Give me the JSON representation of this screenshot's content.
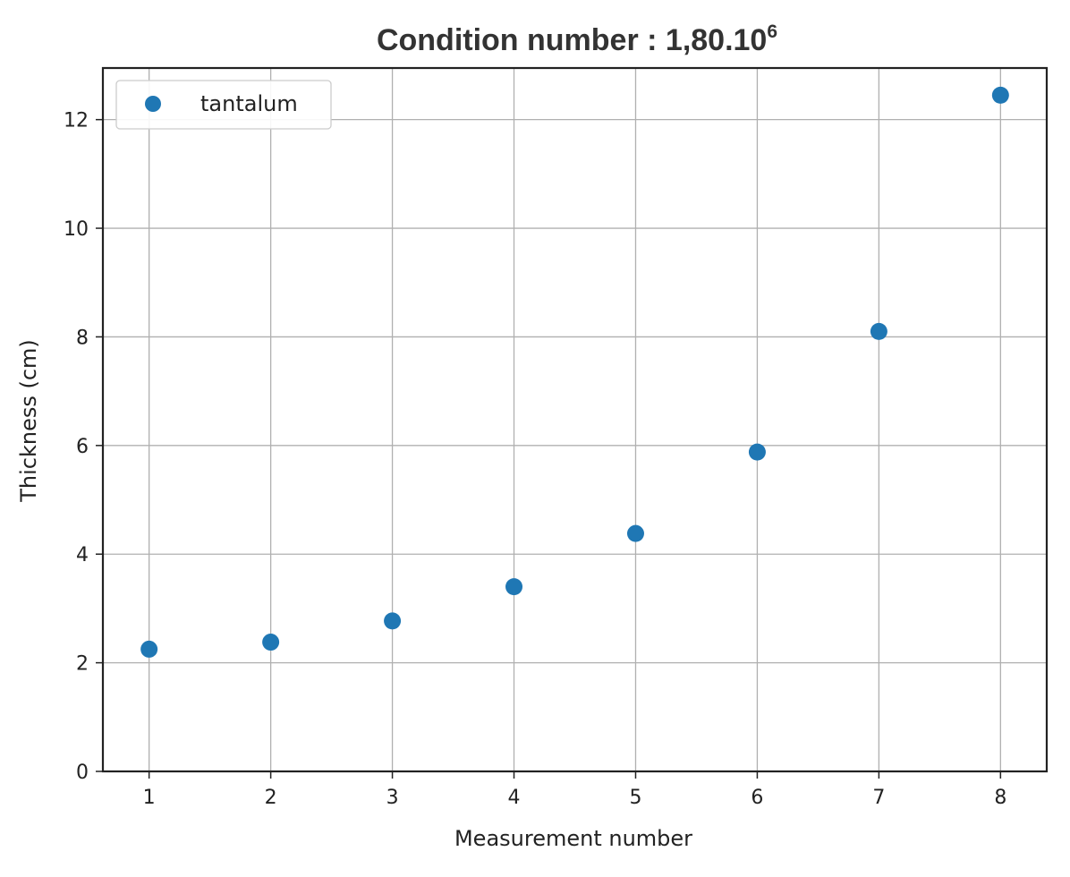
{
  "chart_data": {
    "type": "scatter",
    "title": "Condition number : 1,80.10",
    "title_superscript": "6",
    "xlabel": "Measurement number",
    "ylabel": "Thickness (cm)",
    "xlim": [
      0.62,
      8.38
    ],
    "ylim": [
      0,
      12.95
    ],
    "xticks": [
      1,
      2,
      3,
      4,
      5,
      6,
      7,
      8
    ],
    "yticks": [
      0,
      2,
      4,
      6,
      8,
      10,
      12
    ],
    "grid": true,
    "legend_position": "top-left",
    "series": [
      {
        "name": "tantalum",
        "color": "#1f77b4",
        "x": [
          1,
          2,
          3,
          4,
          5,
          6,
          7,
          8
        ],
        "y": [
          2.25,
          2.38,
          2.77,
          3.4,
          4.38,
          5.88,
          8.1,
          12.45
        ]
      }
    ]
  }
}
